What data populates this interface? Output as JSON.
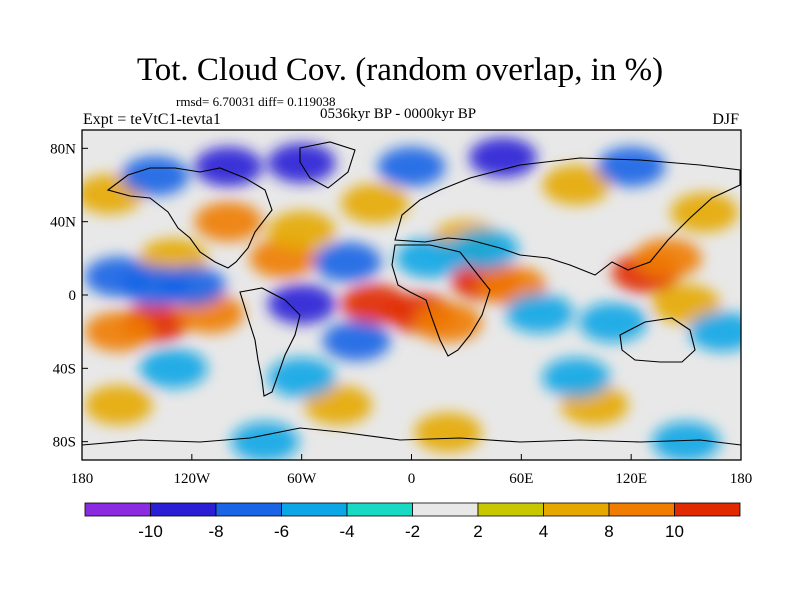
{
  "title": "Tot. Cloud Cov. (random overlap, in %)",
  "stats": "rmsd= 6.70031 diff= 0.119038",
  "experiment": "Expt = teVtC1-tevta1",
  "period": "0536kyr BP - 0000kyr BP",
  "season": "DJF",
  "chart_data": {
    "type": "heatmap",
    "projection": "cylindrical-equidistant",
    "x_ticks": [
      {
        "value": -180,
        "label": "180"
      },
      {
        "value": -120,
        "label": "120W"
      },
      {
        "value": -60,
        "label": "60W"
      },
      {
        "value": 0,
        "label": "0"
      },
      {
        "value": 60,
        "label": "60E"
      },
      {
        "value": 120,
        "label": "120E"
      },
      {
        "value": 180,
        "label": "180"
      }
    ],
    "y_ticks": [
      {
        "value": 80,
        "label": "80N"
      },
      {
        "value": 40,
        "label": "40N"
      },
      {
        "value": 0,
        "label": "0"
      },
      {
        "value": -40,
        "label": "40S"
      },
      {
        "value": -80,
        "label": "80S"
      }
    ],
    "xlim": [
      -180,
      180
    ],
    "ylim": [
      -90,
      90
    ],
    "colorbar": {
      "levels": [
        -10,
        -8,
        -6,
        -4,
        -2,
        2,
        4,
        8,
        10
      ],
      "labels": [
        "-10",
        "-8",
        "-6",
        "-4",
        "-2",
        "2",
        "4",
        "8",
        "10"
      ],
      "colors": [
        "#8a2be2",
        "#2a1ed6",
        "#1a64e6",
        "#0aa6e6",
        "#17d9c4",
        "#e8e8e8",
        "#c8c800",
        "#e6a800",
        "#f07c00",
        "#e12a00"
      ]
    },
    "fields": [
      {
        "lon": -140,
        "lat": -15,
        "value": 11
      },
      {
        "lon": -160,
        "lat": -20,
        "value": 9
      },
      {
        "lon": -110,
        "lat": -10,
        "value": 9
      },
      {
        "lon": -70,
        "lat": 20,
        "value": 8
      },
      {
        "lon": -20,
        "lat": -5,
        "value": 11
      },
      {
        "lon": 5,
        "lat": -10,
        "value": 11
      },
      {
        "lon": 20,
        "lat": -15,
        "value": 9
      },
      {
        "lon": 40,
        "lat": 8,
        "value": 10
      },
      {
        "lon": 55,
        "lat": 5,
        "value": 8
      },
      {
        "lon": 128,
        "lat": 12,
        "value": 11
      },
      {
        "lon": 140,
        "lat": 20,
        "value": 8
      },
      {
        "lon": -100,
        "lat": 40,
        "value": 8
      },
      {
        "lon": -60,
        "lat": 35,
        "value": 7
      },
      {
        "lon": -20,
        "lat": 50,
        "value": 7
      },
      {
        "lon": -165,
        "lat": 55,
        "value": 7
      },
      {
        "lon": 90,
        "lat": 60,
        "value": 7
      },
      {
        "lon": 160,
        "lat": 45,
        "value": 6
      },
      {
        "lon": 150,
        "lat": -5,
        "value": 6
      },
      {
        "lon": 30,
        "lat": 30,
        "value": 5
      },
      {
        "lon": -130,
        "lat": 20,
        "value": 5
      },
      {
        "lon": 20,
        "lat": -75,
        "value": 6
      },
      {
        "lon": -40,
        "lat": -60,
        "value": 5
      },
      {
        "lon": -160,
        "lat": -60,
        "value": 4
      },
      {
        "lon": 100,
        "lat": -60,
        "value": 4
      },
      {
        "lon": -140,
        "lat": 65,
        "value": -8
      },
      {
        "lon": -100,
        "lat": 70,
        "value": -10
      },
      {
        "lon": -60,
        "lat": 72,
        "value": -9
      },
      {
        "lon": 0,
        "lat": 70,
        "value": -8
      },
      {
        "lon": 50,
        "lat": 75,
        "value": -9
      },
      {
        "lon": 120,
        "lat": 70,
        "value": -8
      },
      {
        "lon": -160,
        "lat": 10,
        "value": -7
      },
      {
        "lon": -140,
        "lat": 5,
        "value": -7
      },
      {
        "lon": -120,
        "lat": 5,
        "value": -8
      },
      {
        "lon": -60,
        "lat": -5,
        "value": -9
      },
      {
        "lon": -35,
        "lat": 18,
        "value": -7
      },
      {
        "lon": 10,
        "lat": 20,
        "value": -6
      },
      {
        "lon": 40,
        "lat": 25,
        "value": -5
      },
      {
        "lon": 70,
        "lat": -10,
        "value": -6
      },
      {
        "lon": 110,
        "lat": -15,
        "value": -5
      },
      {
        "lon": -30,
        "lat": -25,
        "value": -7
      },
      {
        "lon": -130,
        "lat": -40,
        "value": -6
      },
      {
        "lon": -60,
        "lat": -45,
        "value": -6
      },
      {
        "lon": 90,
        "lat": -45,
        "value": -5
      },
      {
        "lon": 170,
        "lat": -20,
        "value": -5
      },
      {
        "lon": -80,
        "lat": -80,
        "value": -5
      },
      {
        "lon": 150,
        "lat": -80,
        "value": -5
      }
    ]
  }
}
